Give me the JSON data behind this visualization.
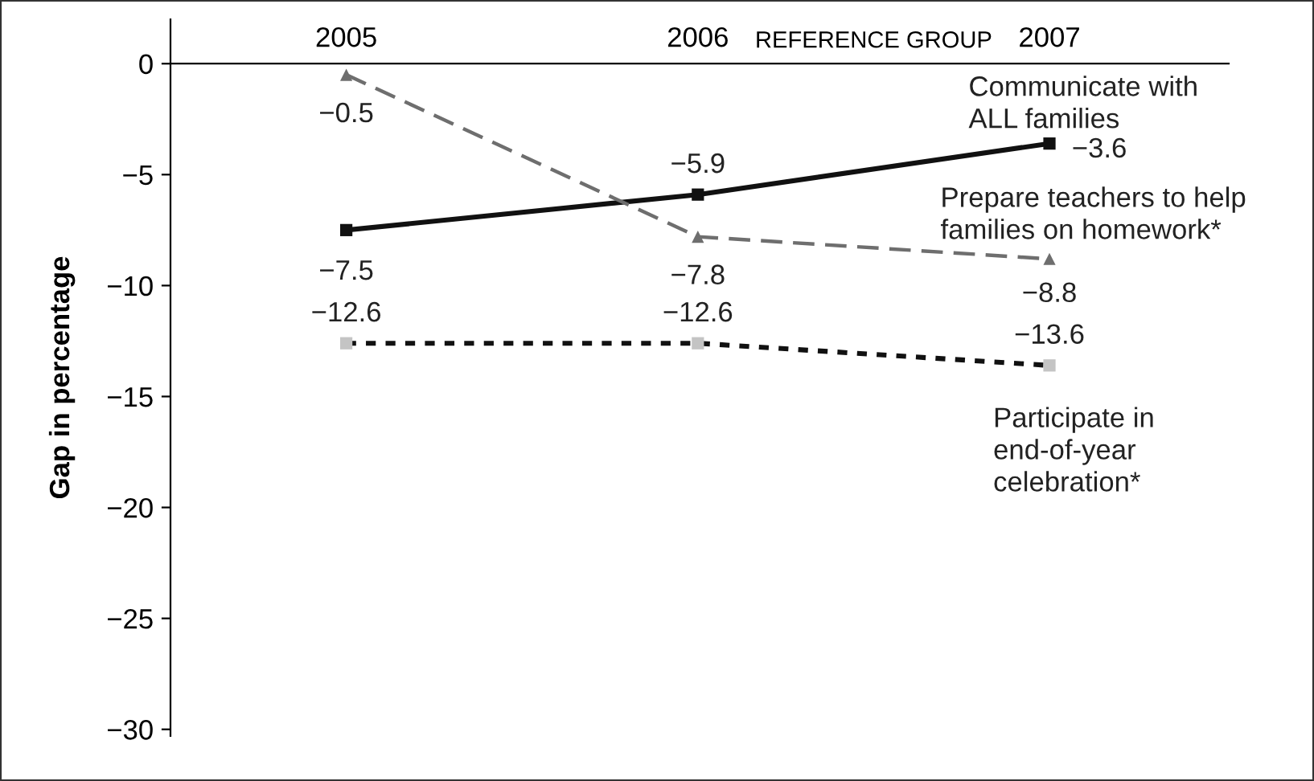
{
  "chart_data": {
    "type": "line",
    "ylabel": "Gap in percentage",
    "categories": [
      "2005",
      "2006",
      "2007"
    ],
    "series": [
      {
        "name": "Communicate with\nALL families",
        "color": "#111111",
        "values": [
          -7.5,
          -5.9,
          -3.6
        ],
        "marker": "square",
        "line_style": "solid"
      },
      {
        "name": "Prepare teachers to help\nfamilies on homework*",
        "color": "#6e6e6e",
        "values": [
          -0.5,
          -7.8,
          -8.8
        ],
        "marker": "triangle",
        "line_style": "dashed"
      },
      {
        "name": "Participate in\nend-of-year\ncelebration*",
        "color": "#111111",
        "colors": [
          "#c4c4c4",
          "#c4c4c4",
          "#c4c4c4"
        ],
        "values": [
          -12.6,
          -12.6,
          -13.6
        ],
        "marker": "square",
        "line_style": "dotted"
      }
    ],
    "ylim": [
      -30.3,
      2
    ],
    "yticks": [
      {
        "value": -30,
        "label": "−30"
      },
      {
        "value": -25,
        "label": "−25"
      },
      {
        "value": -20,
        "label": "−20"
      },
      {
        "value": -15,
        "label": "−15"
      },
      {
        "value": -10,
        "label": "−10"
      },
      {
        "value": -5,
        "label": "−5"
      },
      0
    ],
    "annotations": [
      "REFERENCE GROUP"
    ],
    "data_labels": true,
    "grid": false,
    "legend": false
  }
}
